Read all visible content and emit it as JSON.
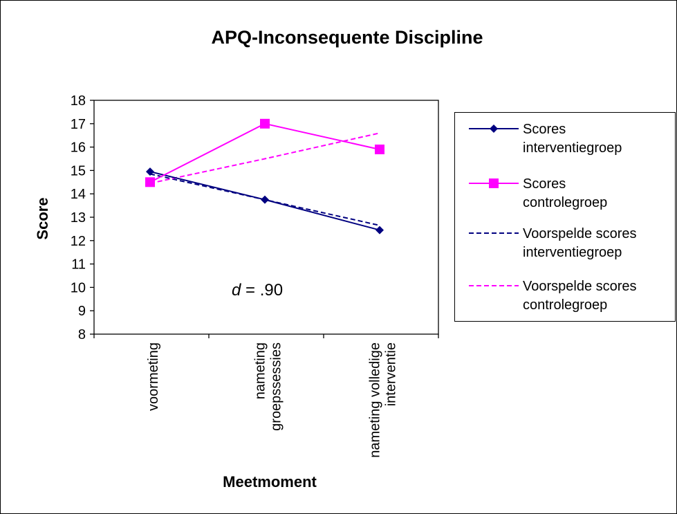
{
  "chart_data": {
    "type": "line",
    "title": "APQ-Inconsequente Discipline",
    "xlabel": "Meetmoment",
    "ylabel": "Score",
    "ylim": [
      8,
      18
    ],
    "yticks": [
      8,
      9,
      10,
      11,
      12,
      13,
      14,
      15,
      16,
      17,
      18
    ],
    "categories": [
      [
        "voormeting"
      ],
      [
        "nameting",
        "groepssessies"
      ],
      [
        "nameting volledige",
        "interventie"
      ]
    ],
    "annotation": {
      "italic": "d",
      "rest": " = .90"
    },
    "legend_position": "right",
    "series": [
      {
        "name": [
          "Scores",
          "interventiegroep"
        ],
        "values": [
          14.95,
          13.75,
          12.45
        ],
        "color": "#000080",
        "style": "solid",
        "marker": "diamond"
      },
      {
        "name": [
          "Scores",
          "controlegroep"
        ],
        "values": [
          14.5,
          17.0,
          15.9
        ],
        "color": "#ff00ff",
        "style": "solid",
        "marker": "square"
      },
      {
        "name": [
          "Voorspelde scores",
          "interventiegroep"
        ],
        "values": [
          14.85,
          13.75,
          12.65
        ],
        "color": "#000080",
        "style": "dashed",
        "marker": "none"
      },
      {
        "name": [
          "Voorspelde scores",
          "controlegroep"
        ],
        "values": [
          14.45,
          15.5,
          16.6
        ],
        "color": "#ff00ff",
        "style": "dashed",
        "marker": "none"
      }
    ]
  }
}
